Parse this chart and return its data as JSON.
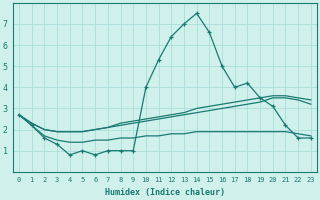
{
  "xlabel": "Humidex (Indice chaleur)",
  "x": [
    0,
    1,
    2,
    3,
    4,
    5,
    6,
    7,
    8,
    9,
    10,
    11,
    12,
    13,
    14,
    15,
    16,
    17,
    18,
    19,
    20,
    21,
    22,
    23
  ],
  "line1": [
    2.7,
    2.2,
    1.6,
    1.3,
    0.8,
    1.0,
    0.8,
    1.0,
    1.0,
    1.0,
    4.0,
    5.3,
    6.4,
    7.0,
    7.5,
    6.6,
    5.0,
    4.0,
    4.2,
    3.5,
    3.1,
    2.2,
    1.6,
    1.6
  ],
  "line2": [
    2.7,
    2.3,
    2.0,
    1.9,
    1.9,
    1.9,
    2.0,
    2.1,
    2.2,
    2.3,
    2.4,
    2.5,
    2.6,
    2.7,
    2.8,
    2.9,
    3.0,
    3.1,
    3.2,
    3.3,
    3.5,
    3.5,
    3.4,
    3.2
  ],
  "line3": [
    2.7,
    2.3,
    2.0,
    1.9,
    1.9,
    1.9,
    2.0,
    2.1,
    2.3,
    2.4,
    2.5,
    2.6,
    2.7,
    2.8,
    3.0,
    3.1,
    3.2,
    3.3,
    3.4,
    3.5,
    3.6,
    3.6,
    3.5,
    3.4
  ],
  "line4": [
    2.7,
    2.2,
    1.7,
    1.5,
    1.4,
    1.4,
    1.5,
    1.5,
    1.6,
    1.6,
    1.7,
    1.7,
    1.8,
    1.8,
    1.9,
    1.9,
    1.9,
    1.9,
    1.9,
    1.9,
    1.9,
    1.9,
    1.8,
    1.7
  ],
  "color": "#1a7a72",
  "bg_color": "#cff0eb",
  "grid_color": "#aaddd8",
  "ylim": [
    0,
    8
  ],
  "xlim": [
    -0.5,
    23.5
  ],
  "yticks": [
    1,
    2,
    3,
    4,
    5,
    6,
    7
  ],
  "xticks": [
    0,
    1,
    2,
    3,
    4,
    5,
    6,
    7,
    8,
    9,
    10,
    11,
    12,
    13,
    14,
    15,
    16,
    17,
    18,
    19,
    20,
    21,
    22,
    23
  ]
}
